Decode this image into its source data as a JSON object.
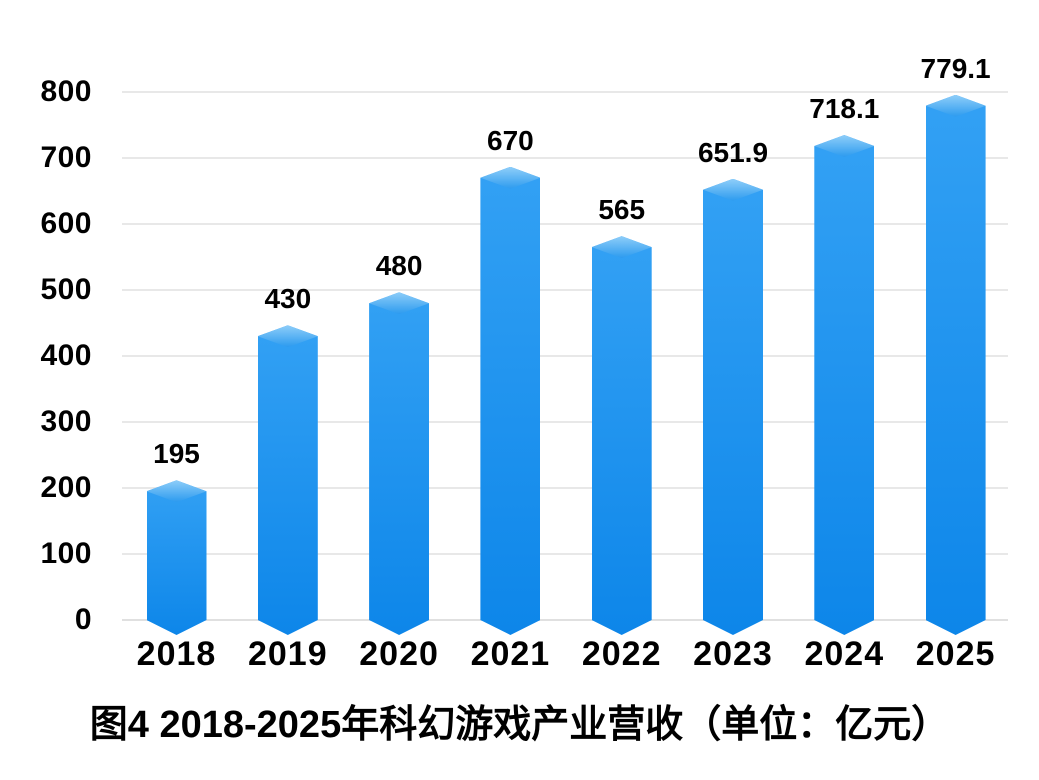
{
  "chart_data": {
    "type": "bar",
    "title": "图4 2018-2025年科幻游戏产业营收（单位：亿元）",
    "categories": [
      "2018",
      "2019",
      "2020",
      "2021",
      "2022",
      "2023",
      "2024",
      "2025"
    ],
    "values": [
      195,
      430,
      480,
      670,
      565,
      651.9,
      718.1,
      779.1
    ],
    "value_labels": [
      "195",
      "430",
      "480",
      "670",
      "565",
      "651.9",
      "718.1",
      "779.1"
    ],
    "yticks": [
      0,
      100,
      200,
      300,
      400,
      500,
      600,
      700,
      800
    ],
    "ylim": [
      0,
      800
    ],
    "xlabel": "",
    "ylabel": "",
    "grid": "horizontal",
    "legend": "none",
    "bar_style": "3d-diamond-top-v-bottom",
    "colors": {
      "bar_body_top": "#33A1F4",
      "bar_body_bottom": "#0D86E9",
      "bar_face_light": "#8FCEF9",
      "bar_face_dark": "#2D9BEF",
      "gridline": "#E8E8E8",
      "baseline": "#E0E0E0",
      "axis_text": "#000000",
      "background": "#FFFFFF"
    }
  }
}
